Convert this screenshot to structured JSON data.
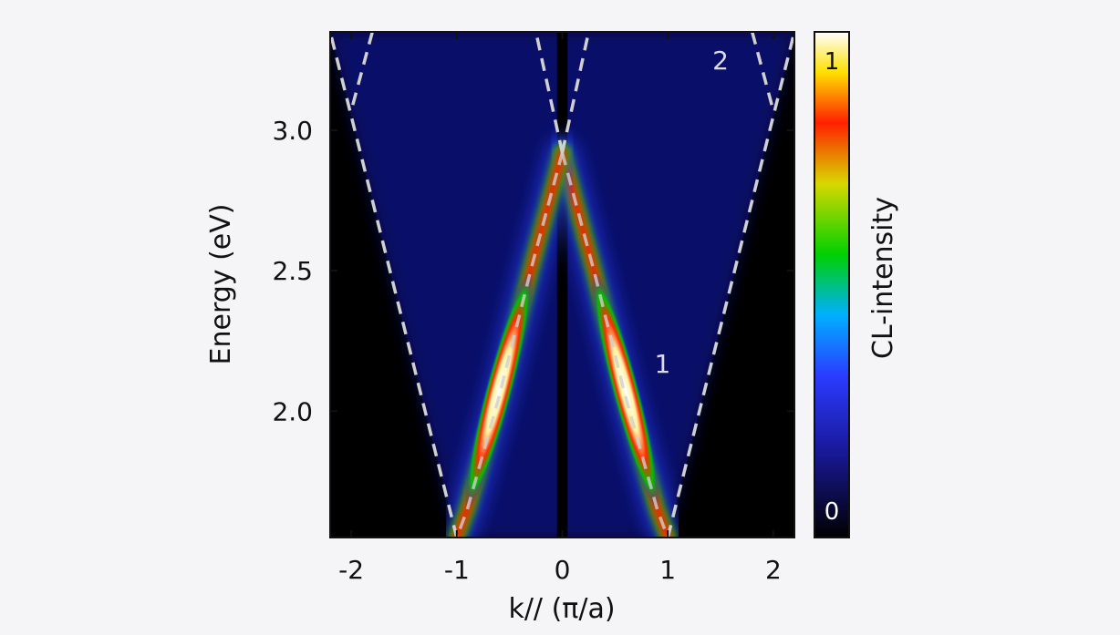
{
  "chart_data": {
    "type": "heatmap",
    "title": "",
    "xlabel": "k// (π/a)",
    "ylabel": "Energy (eV)",
    "xlim": [
      -2.2,
      2.2
    ],
    "ylim": [
      1.55,
      3.35
    ],
    "x_ticks": [
      -2,
      -1,
      0,
      1,
      2
    ],
    "y_ticks": [
      2.0,
      2.5,
      3.0
    ],
    "x_tick_labels": [
      "-2",
      "-1",
      "0",
      "1",
      "2"
    ],
    "y_tick_labels": [
      "2.0",
      "2.5",
      "3.0"
    ],
    "colorbar": {
      "label": "CL-intensity",
      "min_label": "0",
      "max_label": "1",
      "colormap": [
        "#000000",
        "#1a1aa0",
        "#2a3cff",
        "#00b0ff",
        "#00d000",
        "#d8d800",
        "#ff2000",
        "#ffffff"
      ]
    },
    "annotations": [
      {
        "text": "1",
        "x": 0.95,
        "y": 2.17
      },
      {
        "text": "2",
        "x": 1.5,
        "y": 3.25
      }
    ],
    "bands": [
      {
        "name": "1",
        "points": [
          [
            0.0,
            2.92
          ],
          [
            0.3,
            2.5
          ],
          [
            0.6,
            2.05
          ],
          [
            0.9,
            1.65
          ],
          [
            1.0,
            1.55
          ]
        ]
      },
      {
        "name": "2",
        "points": [
          [
            1.8,
            3.35
          ],
          [
            2.0,
            3.07
          ]
        ]
      }
    ],
    "light_line_points": [
      [
        -2.2,
        3.35
      ],
      [
        -1.0,
        1.55
      ],
      [
        1.0,
        1.55
      ],
      [
        2.2,
        3.35
      ]
    ]
  }
}
